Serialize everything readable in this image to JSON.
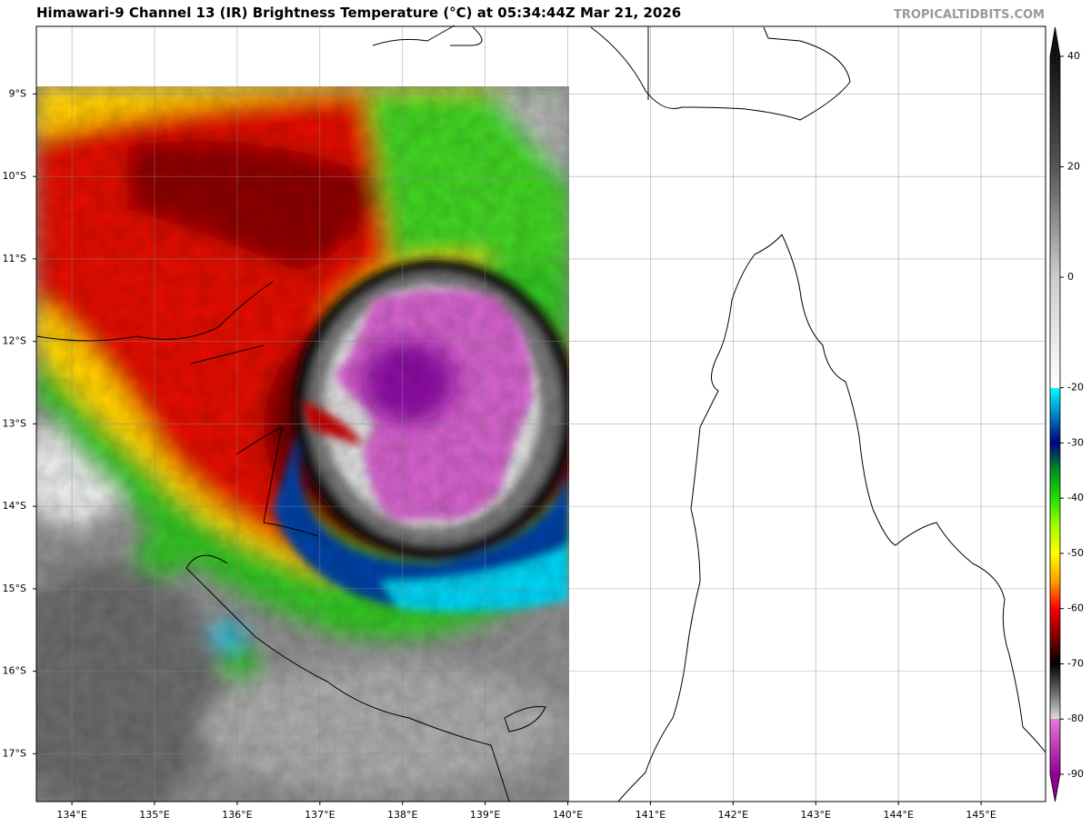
{
  "header": {
    "title": "Himawari-9 Channel 13 (IR) Brightness Temperature (°C) at 05:34:44Z Mar 21, 2026",
    "watermark": "TROPICALTIDBITS.COM"
  },
  "map": {
    "xlim": [
      133.57,
      145.78
    ],
    "ylim": [
      -17.58,
      -8.18
    ],
    "lat_ticks": [
      {
        "value": -9,
        "label": "9°S"
      },
      {
        "value": -10,
        "label": "10°S"
      },
      {
        "value": -11,
        "label": "11°S"
      },
      {
        "value": -12,
        "label": "12°S"
      },
      {
        "value": -13,
        "label": "13°S"
      },
      {
        "value": -14,
        "label": "14°S"
      },
      {
        "value": -15,
        "label": "15°S"
      },
      {
        "value": -16,
        "label": "16°S"
      },
      {
        "value": -17,
        "label": "17°S"
      }
    ],
    "lon_ticks": [
      {
        "value": 134,
        "label": "134°E"
      },
      {
        "value": 135,
        "label": "135°E"
      },
      {
        "value": 136,
        "label": "136°E"
      },
      {
        "value": 137,
        "label": "137°E"
      },
      {
        "value": 138,
        "label": "138°E"
      },
      {
        "value": 139,
        "label": "139°E"
      },
      {
        "value": 140,
        "label": "140°E"
      },
      {
        "value": 141,
        "label": "141°E"
      },
      {
        "value": 142,
        "label": "142°E"
      },
      {
        "value": 143,
        "label": "143°E"
      },
      {
        "value": 144,
        "label": "144°E"
      },
      {
        "value": 145,
        "label": "145°E"
      }
    ]
  },
  "colorbar": {
    "lim": [
      -90,
      40
    ],
    "ticks": [
      40,
      20,
      0,
      -20,
      -30,
      -40,
      -50,
      -60,
      -70,
      -80,
      -90
    ]
  }
}
